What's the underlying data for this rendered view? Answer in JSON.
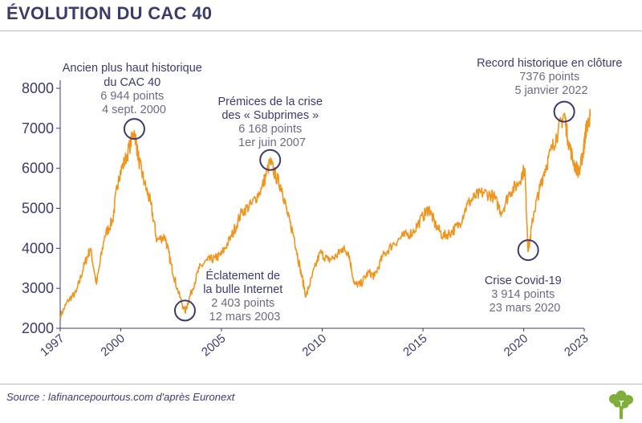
{
  "title": "ÉVOLUTION DU CAC 40",
  "source": "Source : lafinancepourtous.com d'après Euronext",
  "colors": {
    "line": "#f0961e",
    "text": "#3b3b6d",
    "sub_text": "#6b6b85",
    "circle": "#3b3b6d",
    "logo": "#7fae3b"
  },
  "logo_icon": "tree-icon",
  "chart_data": {
    "type": "line",
    "title": "ÉVOLUTION DU CAC 40",
    "xlabel": "",
    "ylabel": "",
    "xlim": [
      1997,
      2023
    ],
    "ylim": [
      2000,
      8000
    ],
    "y_ticks": [
      2000,
      3000,
      4000,
      5000,
      6000,
      7000,
      8000
    ],
    "x_ticks": [
      "1997",
      "2000",
      "2005",
      "2010",
      "2015",
      "2020",
      "2023"
    ],
    "x_tick_values": [
      1997,
      2000,
      2005,
      2010,
      2015,
      2020,
      2023
    ],
    "grid": false,
    "series": [
      {
        "name": "CAC 40",
        "x": [
          1997.0,
          1997.4,
          1997.8,
          1998.2,
          1998.5,
          1998.8,
          1999.2,
          1999.6,
          1999.9,
          2000.3,
          2000.68,
          2000.9,
          2001.2,
          2001.5,
          2001.8,
          2002.2,
          2002.5,
          2002.8,
          2003.19,
          2003.5,
          2003.9,
          2004.3,
          2004.7,
          2005.0,
          2005.5,
          2006.0,
          2006.5,
          2007.0,
          2007.42,
          2007.7,
          2008.0,
          2008.3,
          2008.6,
          2008.9,
          2009.2,
          2009.5,
          2009.9,
          2010.3,
          2010.7,
          2011.0,
          2011.3,
          2011.6,
          2011.9,
          2012.3,
          2012.6,
          2013.0,
          2013.5,
          2014.0,
          2014.5,
          2015.0,
          2015.3,
          2015.6,
          2016.0,
          2016.4,
          2016.8,
          2017.2,
          2017.6,
          2018.0,
          2018.5,
          2018.9,
          2019.3,
          2019.7,
          2020.05,
          2020.22,
          2020.5,
          2020.8,
          2021.0,
          2021.4,
          2021.7,
          2022.01,
          2022.2,
          2022.5,
          2022.75,
          2022.95,
          2023.0,
          2023.1,
          2023.3
        ],
        "values": [
          2300,
          2700,
          2900,
          3600,
          4000,
          3100,
          4300,
          4700,
          5800,
          6300,
          6944,
          6200,
          5600,
          5100,
          4200,
          4300,
          3600,
          3000,
          2403,
          2900,
          3500,
          3700,
          3750,
          3850,
          4300,
          4900,
          5100,
          5500,
          6168,
          5800,
          5500,
          4800,
          4300,
          3500,
          2800,
          3300,
          3900,
          3700,
          3800,
          4000,
          3900,
          3100,
          3100,
          3400,
          3300,
          3800,
          4100,
          4300,
          4400,
          4800,
          5000,
          4600,
          4300,
          4400,
          4600,
          5100,
          5300,
          5400,
          5300,
          4900,
          5400,
          5600,
          6000,
          3914,
          4900,
          5500,
          5900,
          6500,
          6900,
          7376,
          6700,
          6100,
          5900,
          6400,
          6600,
          7000,
          7300
        ]
      }
    ],
    "annotations": [
      {
        "lines": [
          "Ancien plus haut historique",
          "du CAC 40",
          "6 944 points",
          "4 sept. 2000"
        ],
        "x": 2000.68,
        "y": 6944
      },
      {
        "lines": [
          "Prémices de la crise",
          "des « Subprimes »",
          "6 168 points",
          "1er juin 2007"
        ],
        "x": 2007.42,
        "y": 6168
      },
      {
        "lines": [
          "Éclatement de",
          "la bulle Internet",
          "2 403 points",
          "12 mars 2003"
        ],
        "x": 2003.19,
        "y": 2403
      },
      {
        "lines": [
          "Record historique en clôture",
          "7376 points",
          "5 janvier 2022"
        ],
        "x": 2022.01,
        "y": 7376
      },
      {
        "lines": [
          "Crise Covid-19",
          "3 914 points",
          "23 mars 2020"
        ],
        "x": 2020.22,
        "y": 3914
      }
    ]
  }
}
